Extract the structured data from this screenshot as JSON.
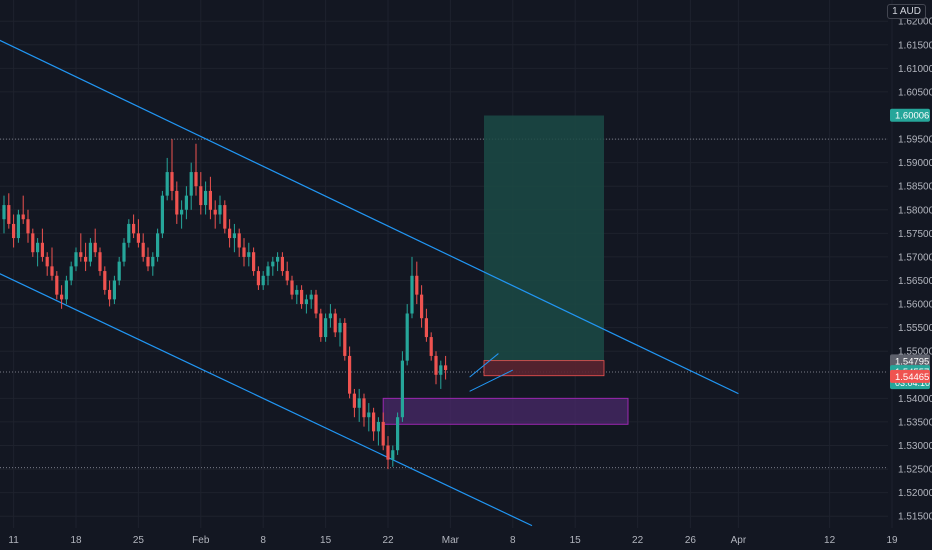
{
  "header": {
    "unit_label": "1 AUD"
  },
  "colors": {
    "background": "#131722",
    "grid": "#1e222d",
    "up": "#26a69a",
    "down": "#ef5350",
    "channel": "#2196f3",
    "target_zone": "#1b4a45",
    "stop_zone": "#5a2430",
    "purple_zone": "#4a2a6a",
    "purple_border": "#9c27b0",
    "dotted": "#787b86"
  },
  "chart_data": {
    "type": "candlestick",
    "ylim": [
      1.5125,
      1.6245
    ],
    "y_ticks": [
      "1.62000",
      "1.61500",
      "1.61000",
      "1.60500",
      "1.59500",
      "1.59000",
      "1.58500",
      "1.58000",
      "1.57500",
      "1.57000",
      "1.56500",
      "1.56000",
      "1.55500",
      "1.55000",
      "1.54000",
      "1.53500",
      "1.53000",
      "1.52500",
      "1.52000",
      "1.51500"
    ],
    "x_ticks": [
      {
        "label": "11",
        "idx": 2
      },
      {
        "label": "18",
        "idx": 15
      },
      {
        "label": "25",
        "idx": 28
      },
      {
        "label": "Feb",
        "idx": 41
      },
      {
        "label": "8",
        "idx": 54
      },
      {
        "label": "15",
        "idx": 67
      },
      {
        "label": "22",
        "idx": 80
      },
      {
        "label": "Mar",
        "idx": 93
      },
      {
        "label": "8",
        "idx": 106
      },
      {
        "label": "15",
        "idx": 119
      },
      {
        "label": "22",
        "idx": 132
      },
      {
        "label": "26",
        "idx": 143
      },
      {
        "label": "Apr",
        "idx": 153
      },
      {
        "label": "12",
        "idx": 172
      },
      {
        "label": "19",
        "idx": 185
      }
    ],
    "price_labels": [
      {
        "value": 1.60006,
        "text": "1.60006",
        "color": "#26a69a"
      },
      {
        "value": 1.54795,
        "text": "1.54795",
        "color": "#5d606b"
      },
      {
        "value": 1.54557,
        "text": "1.54557",
        "color": "#26a69a",
        "sub": "03:04:10"
      },
      {
        "value": 1.54465,
        "text": "1.54465",
        "color": "#ef5350"
      }
    ],
    "horizontal_lines": [
      1.595,
      1.5456,
      1.5253
    ],
    "channel_upper": {
      "x1": -1,
      "y1": 1.616,
      "x2": 153,
      "y2": 1.541
    },
    "channel_lower": {
      "x1": -1,
      "y1": 1.5665,
      "x2": 110,
      "y2": 1.513
    },
    "long_position": {
      "x1": 100,
      "x2": 125,
      "target": 1.6,
      "entry": 1.548,
      "stop": 1.5448
    },
    "purple_zone": {
      "x1": 79,
      "x2": 130,
      "top": 1.54,
      "bottom": 1.5345
    },
    "wedge": {
      "upper": [
        {
          "x": 97,
          "y": 1.5445
        },
        {
          "x": 103,
          "y": 1.5495
        }
      ],
      "lower": [
        {
          "x": 97,
          "y": 1.5415
        },
        {
          "x": 106,
          "y": 1.546
        }
      ]
    },
    "candles": [
      [
        1.578,
        1.583,
        1.575,
        1.581
      ],
      [
        1.581,
        1.5835,
        1.576,
        1.577
      ],
      [
        1.577,
        1.579,
        1.572,
        1.574
      ],
      [
        1.574,
        1.58,
        1.573,
        1.579
      ],
      [
        1.579,
        1.583,
        1.577,
        1.578
      ],
      [
        1.578,
        1.58,
        1.573,
        1.575
      ],
      [
        1.575,
        1.576,
        1.57,
        1.571
      ],
      [
        1.571,
        1.574,
        1.568,
        1.573
      ],
      [
        1.573,
        1.576,
        1.569,
        1.57
      ],
      [
        1.57,
        1.571,
        1.566,
        1.568
      ],
      [
        1.568,
        1.572,
        1.565,
        1.566
      ],
      [
        1.566,
        1.567,
        1.561,
        1.562
      ],
      [
        1.562,
        1.564,
        1.559,
        1.561
      ],
      [
        1.561,
        1.566,
        1.56,
        1.565
      ],
      [
        1.565,
        1.569,
        1.564,
        1.568
      ],
      [
        1.568,
        1.572,
        1.567,
        1.571
      ],
      [
        1.571,
        1.575,
        1.569,
        1.57
      ],
      [
        1.57,
        1.573,
        1.567,
        1.569
      ],
      [
        1.569,
        1.574,
        1.568,
        1.573
      ],
      [
        1.573,
        1.576,
        1.57,
        1.571
      ],
      [
        1.571,
        1.572,
        1.566,
        1.567
      ],
      [
        1.567,
        1.568,
        1.562,
        1.563
      ],
      [
        1.563,
        1.565,
        1.5595,
        1.561
      ],
      [
        1.561,
        1.566,
        1.56,
        1.565
      ],
      [
        1.565,
        1.57,
        1.564,
        1.569
      ],
      [
        1.569,
        1.574,
        1.568,
        1.573
      ],
      [
        1.573,
        1.578,
        1.572,
        1.577
      ],
      [
        1.577,
        1.579,
        1.574,
        1.575
      ],
      [
        1.575,
        1.578,
        1.572,
        1.573
      ],
      [
        1.573,
        1.575,
        1.569,
        1.57
      ],
      [
        1.57,
        1.572,
        1.567,
        1.568
      ],
      [
        1.568,
        1.571,
        1.566,
        1.57
      ],
      [
        1.57,
        1.576,
        1.569,
        1.575
      ],
      [
        1.575,
        1.584,
        1.574,
        1.583
      ],
      [
        1.583,
        1.591,
        1.582,
        1.588
      ],
      [
        1.588,
        1.595,
        1.582,
        1.584
      ],
      [
        1.584,
        1.586,
        1.577,
        1.579
      ],
      [
        1.579,
        1.582,
        1.576,
        1.58
      ],
      [
        1.58,
        1.585,
        1.578,
        1.583
      ],
      [
        1.583,
        1.59,
        1.58,
        1.588
      ],
      [
        1.588,
        1.594,
        1.583,
        1.585
      ],
      [
        1.585,
        1.588,
        1.579,
        1.581
      ],
      [
        1.581,
        1.586,
        1.579,
        1.584
      ],
      [
        1.584,
        1.587,
        1.578,
        1.58
      ],
      [
        1.58,
        1.582,
        1.576,
        1.579
      ],
      [
        1.579,
        1.583,
        1.577,
        1.581
      ],
      [
        1.581,
        1.582,
        1.575,
        1.576
      ],
      [
        1.576,
        1.578,
        1.572,
        1.574
      ],
      [
        1.574,
        1.577,
        1.571,
        1.575
      ],
      [
        1.575,
        1.576,
        1.57,
        1.572
      ],
      [
        1.572,
        1.574,
        1.568,
        1.57
      ],
      [
        1.57,
        1.573,
        1.568,
        1.571
      ],
      [
        1.571,
        1.572,
        1.566,
        1.567
      ],
      [
        1.567,
        1.568,
        1.563,
        1.564
      ],
      [
        1.564,
        1.567,
        1.563,
        1.566
      ],
      [
        1.566,
        1.569,
        1.564,
        1.568
      ],
      [
        1.568,
        1.57,
        1.566,
        1.569
      ],
      [
        1.569,
        1.571,
        1.567,
        1.57
      ],
      [
        1.57,
        1.571,
        1.566,
        1.567
      ],
      [
        1.567,
        1.569,
        1.564,
        1.565
      ],
      [
        1.565,
        1.566,
        1.561,
        1.562
      ],
      [
        1.562,
        1.564,
        1.56,
        1.563
      ],
      [
        1.563,
        1.564,
        1.559,
        1.56
      ],
      [
        1.56,
        1.562,
        1.558,
        1.561
      ],
      [
        1.561,
        1.563,
        1.559,
        1.562
      ],
      [
        1.562,
        1.563,
        1.557,
        1.558
      ],
      [
        1.558,
        1.559,
        1.552,
        1.553
      ],
      [
        1.553,
        1.558,
        1.552,
        1.557
      ],
      [
        1.557,
        1.56,
        1.555,
        1.558
      ],
      [
        1.558,
        1.559,
        1.553,
        1.554
      ],
      [
        1.554,
        1.557,
        1.551,
        1.556
      ],
      [
        1.556,
        1.557,
        1.548,
        1.549
      ],
      [
        1.549,
        1.551,
        1.54,
        1.541
      ],
      [
        1.541,
        1.542,
        1.536,
        1.538
      ],
      [
        1.538,
        1.542,
        1.535,
        1.54
      ],
      [
        1.54,
        1.541,
        1.534,
        1.536
      ],
      [
        1.536,
        1.539,
        1.533,
        1.537
      ],
      [
        1.537,
        1.538,
        1.531,
        1.533
      ],
      [
        1.533,
        1.536,
        1.53,
        1.535
      ],
      [
        1.535,
        1.537,
        1.529,
        1.53
      ],
      [
        1.53,
        1.532,
        1.525,
        1.527
      ],
      [
        1.527,
        1.53,
        1.5255,
        1.529
      ],
      [
        1.529,
        1.537,
        1.528,
        1.536
      ],
      [
        1.536,
        1.55,
        1.535,
        1.548
      ],
      [
        1.548,
        1.56,
        1.547,
        1.558
      ],
      [
        1.558,
        1.57,
        1.557,
        1.566
      ],
      [
        1.566,
        1.569,
        1.56,
        1.562
      ],
      [
        1.562,
        1.564,
        1.555,
        1.557
      ],
      [
        1.557,
        1.559,
        1.552,
        1.553
      ],
      [
        1.553,
        1.554,
        1.548,
        1.549
      ],
      [
        1.549,
        1.55,
        1.543,
        1.545
      ],
      [
        1.545,
        1.548,
        1.542,
        1.547
      ],
      [
        1.547,
        1.549,
        1.544,
        1.546
      ]
    ]
  }
}
